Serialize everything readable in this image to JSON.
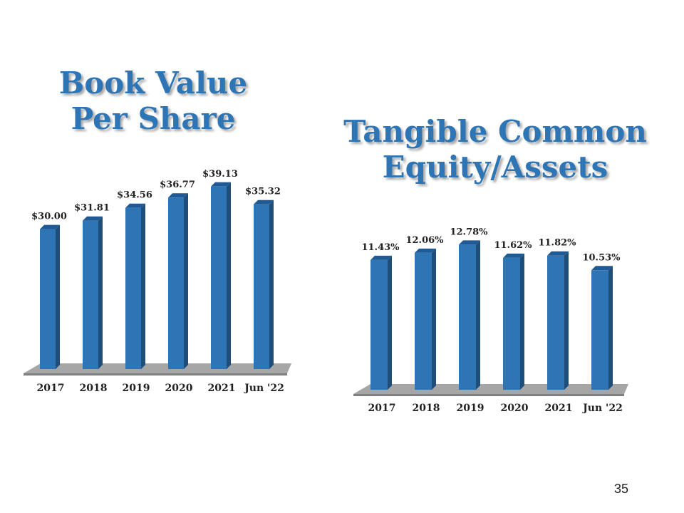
{
  "colors": {
    "title": "#2e75b6",
    "bar_front": "#2e75b6",
    "bar_side": "#1f4e79",
    "bar_top": "#1f5a94",
    "floor": "#a6a6a6"
  },
  "page_number": "35",
  "chart_data": [
    {
      "type": "bar",
      "title": "Book Value Per Share",
      "title_lines": [
        "Book Value",
        "Per Share"
      ],
      "categories": [
        "2017",
        "2018",
        "2019",
        "2020",
        "2021",
        "Jun '22"
      ],
      "values": [
        30.0,
        31.81,
        34.56,
        36.77,
        39.13,
        35.32
      ],
      "value_labels": [
        "$30.00",
        "$31.81",
        "$34.56",
        "$36.77",
        "$39.13",
        "$35.32"
      ],
      "ylim": [
        0,
        42
      ],
      "grid": false,
      "legend": "none"
    },
    {
      "type": "bar",
      "title": "Tangible Common Equity/Assets",
      "title_lines": [
        "Tangible Common",
        "Equity/Assets"
      ],
      "categories": [
        "2017",
        "2018",
        "2019",
        "2020",
        "2021",
        "Jun '22"
      ],
      "values": [
        11.43,
        12.06,
        12.78,
        11.62,
        11.82,
        10.53
      ],
      "value_labels": [
        "11.43%",
        "12.06%",
        "12.78%",
        "11.62%",
        "11.82%",
        "10.53%"
      ],
      "ylim": [
        0,
        14
      ],
      "grid": false,
      "legend": "none"
    }
  ]
}
